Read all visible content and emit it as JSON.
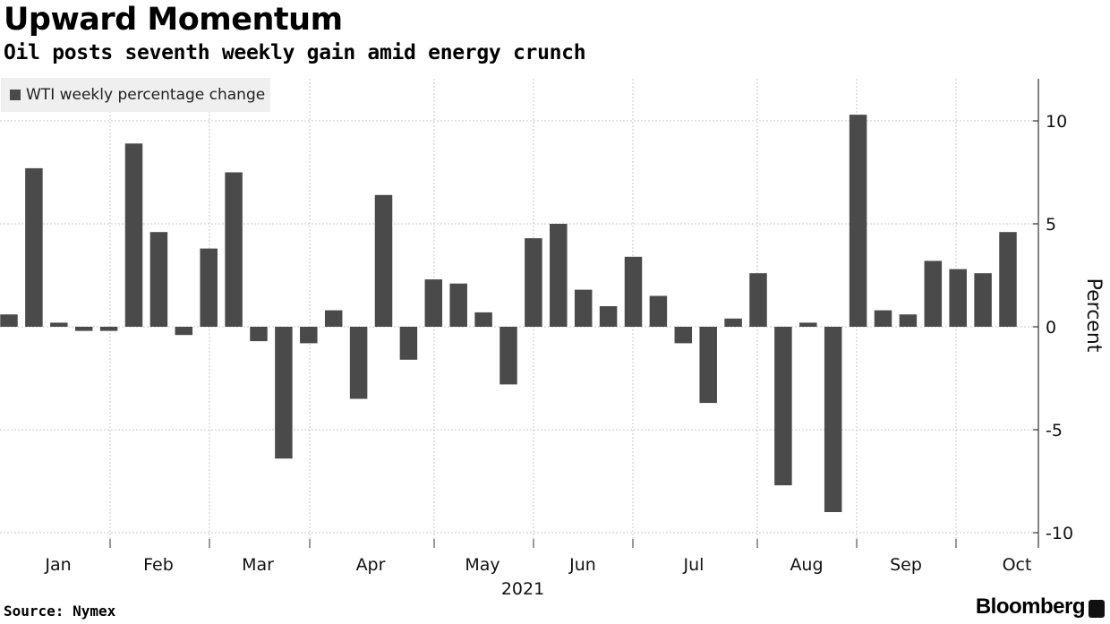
{
  "title": "Upward Momentum",
  "subtitle": "Oil posts seventh weekly gain amid energy crunch",
  "source": "Source: Nymex",
  "brand": "Bloomberg",
  "chart_data": {
    "type": "bar",
    "series": [
      {
        "name": "WTI weekly percentage change",
        "color": "#4a4a4a",
        "values": [
          0.6,
          7.7,
          0.2,
          -0.2,
          -0.2,
          8.9,
          4.6,
          -0.4,
          3.8,
          7.5,
          -0.7,
          -6.4,
          -0.8,
          0.8,
          -3.5,
          6.4,
          -1.6,
          2.3,
          2.1,
          0.7,
          -2.8,
          4.3,
          5.0,
          1.8,
          1.0,
          3.4,
          1.5,
          -0.8,
          -3.7,
          0.4,
          2.6,
          -7.7,
          0.2,
          -9.0,
          10.3,
          0.8,
          0.6,
          3.2,
          2.8,
          2.6,
          4.6
        ]
      }
    ],
    "month_labels": [
      "Jan",
      "Feb",
      "Mar",
      "Apr",
      "May",
      "Jun",
      "Jul",
      "Aug",
      "Sep",
      "Oct"
    ],
    "year_label": "2021",
    "ylabel": "Percent",
    "yticks": [
      10,
      5,
      0,
      -5,
      -10
    ],
    "ylim": [
      -10.5,
      12.2
    ],
    "grid": true,
    "legend": "top-left"
  }
}
